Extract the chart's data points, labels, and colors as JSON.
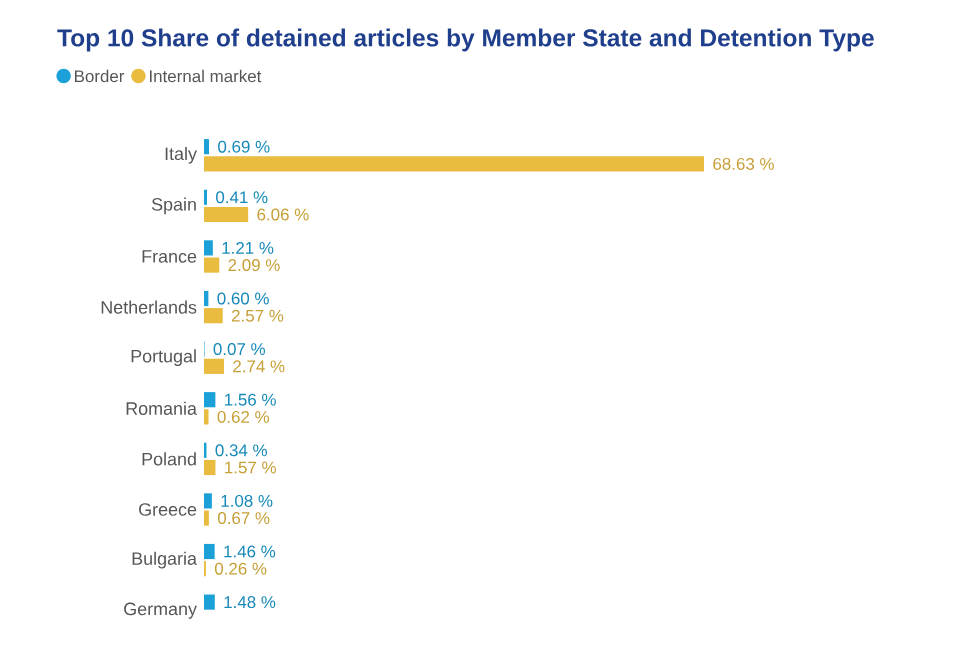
{
  "chart_data": {
    "type": "bar",
    "orientation": "horizontal",
    "title": "Top 10 Share of detained articles by Member State and Detention Type",
    "categories": [
      "Italy",
      "Spain",
      "France",
      "Netherlands",
      "Portugal",
      "Romania",
      "Poland",
      "Greece",
      "Bulgaria",
      "Germany"
    ],
    "legend": "top left",
    "series": [
      {
        "name": "Border",
        "color": "#1ba1d8",
        "values": [
          0.69,
          0.41,
          1.21,
          0.6,
          0.07,
          1.56,
          0.34,
          1.08,
          1.46,
          1.48
        ],
        "value_labels": [
          "0.69 %",
          "0.41 %",
          "1.21 %",
          "0.60 %",
          "0.07 %",
          "1.56 %",
          "0.34 %",
          "1.08 %",
          "1.46 %",
          "1.48 %"
        ]
      },
      {
        "name": "Internal market",
        "color": "#e9bb3f",
        "values": [
          68.63,
          6.06,
          2.09,
          2.57,
          2.74,
          0.62,
          1.57,
          0.67,
          0.26,
          null
        ],
        "value_labels": [
          "68.63 %",
          "6.06 %",
          "2.09 %",
          "2.57 %",
          "2.74 %",
          "0.62 %",
          "1.57 %",
          "0.67 %",
          "0.26 %",
          null
        ]
      }
    ]
  }
}
